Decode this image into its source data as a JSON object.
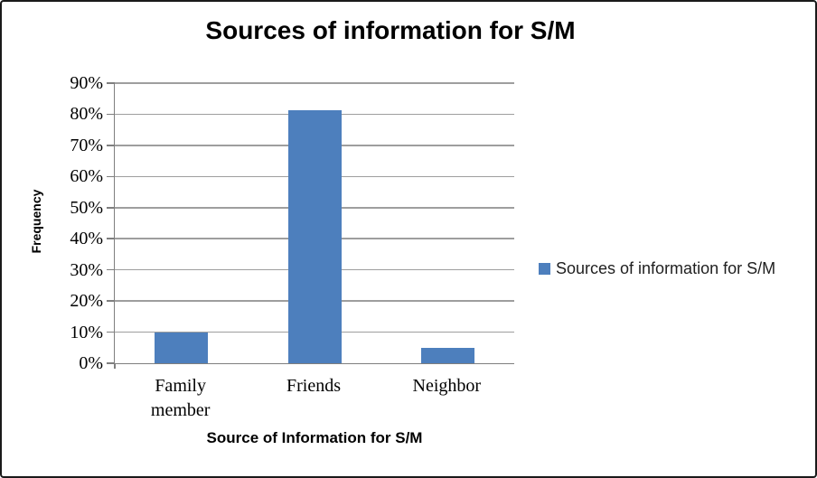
{
  "chart_data": {
    "type": "bar",
    "title": "Sources of information for S/M",
    "categories": [
      "Family member",
      "Friends",
      "Neighbor"
    ],
    "series": [
      {
        "name": "Sources of information for S/M",
        "color": "#4d7fbd",
        "values": [
          10,
          81.4,
          5
        ]
      }
    ],
    "xlabel": "Source of Information for S/M",
    "ylabel": "Frequency",
    "ylim": [
      0,
      90
    ],
    "ytick_step": 10,
    "ytick_suffix": "%",
    "ytick_labels": [
      "0%",
      "10%",
      "20%",
      "30%",
      "40%",
      "50%",
      "60%",
      "70%",
      "80%",
      "90%"
    ],
    "grid": true,
    "legend_position": "right",
    "colors": {
      "bar": "#4d7fbd",
      "gridline": "#9e9e9e",
      "axis": "#7f7f7f",
      "frame_border": "#1a1a1a",
      "text": "#000000"
    }
  }
}
